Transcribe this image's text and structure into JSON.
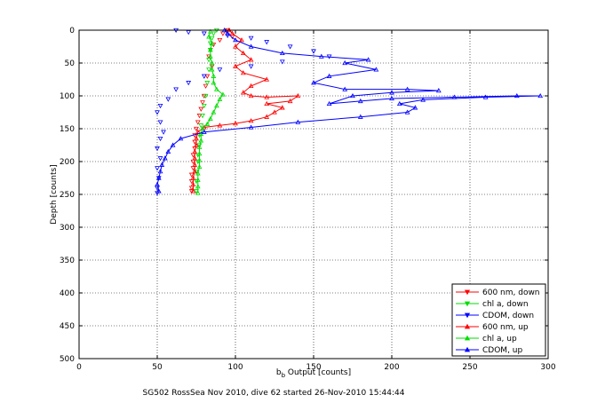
{
  "figure": {
    "caption": "SG502 RossSea Nov 2010, dive 62 started 26-Nov-2010 15:44:44"
  },
  "chart_data": {
    "type": "line",
    "title": "",
    "xlabel_main": "b",
    "xlabel_sub": "b",
    "xlabel_rest": " Output [counts]",
    "ylabel": "Depth [counts]",
    "xlim": [
      0,
      300
    ],
    "ylim": [
      0,
      500
    ],
    "y_reversed": true,
    "grid": true,
    "grid_style": "dotted",
    "xticks": [
      0,
      50,
      100,
      150,
      200,
      250,
      300
    ],
    "yticks": [
      0,
      50,
      100,
      150,
      200,
      250,
      300,
      350,
      400,
      450,
      500
    ],
    "legend_position": "bottom-right",
    "series": [
      {
        "name": "600 nm, down",
        "color": "#ff0000",
        "marker": "triangle-down",
        "line": false,
        "points": [
          [
            95,
            0
          ],
          [
            92,
            5
          ],
          [
            98,
            10
          ],
          [
            90,
            15
          ],
          [
            86,
            22
          ],
          [
            84,
            30
          ],
          [
            83,
            40
          ],
          [
            85,
            55
          ],
          [
            82,
            70
          ],
          [
            81,
            85
          ],
          [
            80,
            100
          ],
          [
            79,
            110
          ],
          [
            78,
            120
          ],
          [
            77,
            130
          ],
          [
            76,
            140
          ],
          [
            75,
            150
          ],
          [
            74,
            160
          ],
          [
            74,
            170
          ],
          [
            74,
            180
          ],
          [
            73,
            190
          ],
          [
            73,
            200
          ],
          [
            73,
            210
          ],
          [
            72,
            220
          ],
          [
            72,
            230
          ],
          [
            72,
            240
          ],
          [
            72,
            245
          ]
        ]
      },
      {
        "name": "chl a, down",
        "color": "#00dd00",
        "marker": "triangle-down",
        "line": false,
        "points": [
          [
            88,
            0
          ],
          [
            86,
            5
          ],
          [
            85,
            12
          ],
          [
            84,
            20
          ],
          [
            84,
            30
          ],
          [
            83,
            45
          ],
          [
            83,
            60
          ],
          [
            82,
            80
          ],
          [
            81,
            100
          ],
          [
            80,
            115
          ],
          [
            79,
            130
          ],
          [
            78,
            145
          ],
          [
            77,
            160
          ],
          [
            77,
            175
          ],
          [
            76,
            190
          ],
          [
            76,
            200
          ],
          [
            75,
            215
          ],
          [
            75,
            230
          ],
          [
            75,
            245
          ]
        ]
      },
      {
        "name": "CDOM, down",
        "color": "#0000ff",
        "marker": "triangle-down",
        "line": false,
        "points": [
          [
            62,
            0
          ],
          [
            70,
            3
          ],
          [
            80,
            5
          ],
          [
            95,
            8
          ],
          [
            110,
            12
          ],
          [
            120,
            18
          ],
          [
            135,
            25
          ],
          [
            150,
            32
          ],
          [
            160,
            40
          ],
          [
            130,
            48
          ],
          [
            110,
            55
          ],
          [
            90,
            60
          ],
          [
            80,
            70
          ],
          [
            70,
            80
          ],
          [
            62,
            90
          ],
          [
            57,
            105
          ],
          [
            52,
            115
          ],
          [
            50,
            125
          ],
          [
            52,
            140
          ],
          [
            54,
            155
          ],
          [
            52,
            165
          ],
          [
            50,
            180
          ],
          [
            52,
            195
          ],
          [
            50,
            210
          ],
          [
            51,
            225
          ],
          [
            50,
            240
          ],
          [
            50,
            248
          ]
        ]
      },
      {
        "name": "600 nm, up",
        "color": "#ff0000",
        "marker": "triangle-up",
        "line": true,
        "points": [
          [
            73,
            245
          ],
          [
            73,
            235
          ],
          [
            73,
            225
          ],
          [
            74,
            215
          ],
          [
            74,
            205
          ],
          [
            74,
            195
          ],
          [
            74,
            185
          ],
          [
            75,
            175
          ],
          [
            75,
            165
          ],
          [
            76,
            155
          ],
          [
            80,
            148
          ],
          [
            90,
            145
          ],
          [
            100,
            142
          ],
          [
            110,
            138
          ],
          [
            120,
            132
          ],
          [
            125,
            125
          ],
          [
            130,
            118
          ],
          [
            120,
            112
          ],
          [
            135,
            108
          ],
          [
            140,
            100
          ],
          [
            120,
            102
          ],
          [
            110,
            100
          ],
          [
            105,
            95
          ],
          [
            110,
            85
          ],
          [
            120,
            75
          ],
          [
            105,
            65
          ],
          [
            100,
            55
          ],
          [
            110,
            45
          ],
          [
            105,
            35
          ],
          [
            100,
            25
          ],
          [
            104,
            15
          ],
          [
            98,
            5
          ],
          [
            96,
            0
          ]
        ]
      },
      {
        "name": "chl a, up",
        "color": "#00dd00",
        "marker": "triangle-up",
        "line": true,
        "points": [
          [
            76,
            248
          ],
          [
            76,
            238
          ],
          [
            76,
            228
          ],
          [
            76,
            218
          ],
          [
            77,
            208
          ],
          [
            77,
            198
          ],
          [
            77,
            188
          ],
          [
            77,
            178
          ],
          [
            78,
            168
          ],
          [
            78,
            158
          ],
          [
            79,
            150
          ],
          [
            82,
            143
          ],
          [
            84,
            135
          ],
          [
            86,
            125
          ],
          [
            88,
            115
          ],
          [
            90,
            105
          ],
          [
            92,
            98
          ],
          [
            88,
            90
          ],
          [
            86,
            80
          ],
          [
            86,
            70
          ],
          [
            85,
            60
          ],
          [
            85,
            50
          ],
          [
            84,
            40
          ],
          [
            84,
            30
          ],
          [
            85,
            20
          ],
          [
            83,
            10
          ],
          [
            84,
            2
          ]
        ]
      },
      {
        "name": "CDOM, up",
        "color": "#0000ff",
        "marker": "triangle-up",
        "line": true,
        "points": [
          [
            51,
            245
          ],
          [
            50,
            235
          ],
          [
            51,
            225
          ],
          [
            52,
            215
          ],
          [
            53,
            205
          ],
          [
            55,
            195
          ],
          [
            57,
            185
          ],
          [
            60,
            175
          ],
          [
            65,
            165
          ],
          [
            80,
            155
          ],
          [
            110,
            148
          ],
          [
            140,
            140
          ],
          [
            180,
            132
          ],
          [
            210,
            125
          ],
          [
            215,
            118
          ],
          [
            205,
            112
          ],
          [
            220,
            106
          ],
          [
            260,
            102
          ],
          [
            295,
            100
          ],
          [
            280,
            100
          ],
          [
            240,
            102
          ],
          [
            200,
            104
          ],
          [
            180,
            108
          ],
          [
            160,
            112
          ],
          [
            175,
            100
          ],
          [
            200,
            95
          ],
          [
            230,
            92
          ],
          [
            210,
            90
          ],
          [
            170,
            90
          ],
          [
            150,
            80
          ],
          [
            160,
            70
          ],
          [
            190,
            60
          ],
          [
            170,
            50
          ],
          [
            185,
            45
          ],
          [
            155,
            40
          ],
          [
            130,
            35
          ],
          [
            110,
            25
          ],
          [
            100,
            15
          ],
          [
            95,
            5
          ],
          [
            93,
            0
          ]
        ]
      }
    ]
  }
}
